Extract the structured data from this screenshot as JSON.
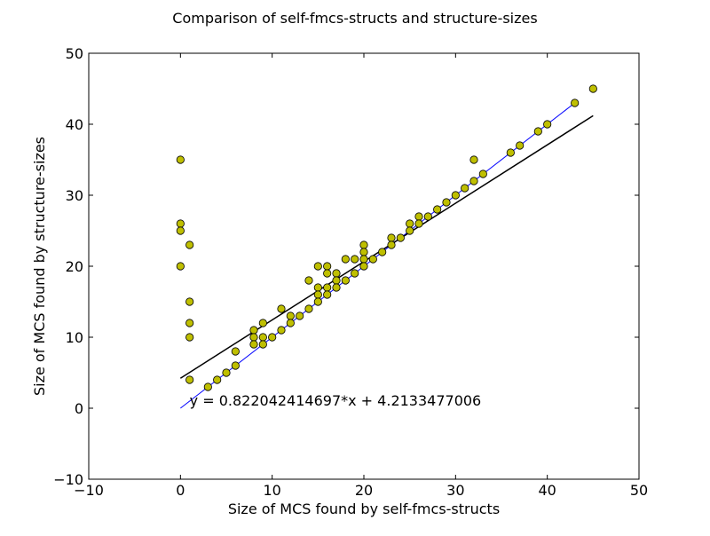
{
  "chart_data": {
    "type": "scatter",
    "title": "Comparison of self-fmcs-structs and structure-sizes",
    "xlabel": "Size of MCS found by self-fmcs-structs",
    "ylabel": "Size of MCS found by structure-sizes",
    "xlim": [
      -10,
      50
    ],
    "ylim": [
      -10,
      50
    ],
    "xticks": [
      "−10",
      "0",
      "10",
      "20",
      "30",
      "40",
      "50"
    ],
    "xtick_values": [
      -10,
      0,
      10,
      20,
      30,
      40,
      50
    ],
    "yticks": [
      "−10",
      "0",
      "10",
      "20",
      "30",
      "40",
      "50"
    ],
    "ytick_values": [
      -10,
      0,
      10,
      20,
      30,
      40,
      50
    ],
    "grid": false,
    "legend": "none",
    "marker_color": "#bfbf00",
    "marker_edge_color": "#000000",
    "fit_line_color": "#000000",
    "identity_line_color": "#0000ff",
    "annotation": "y = 0.822042414697*x + 4.2133477006",
    "fit": {
      "slope": 0.822042414697,
      "intercept": 4.2133477006,
      "x_range": [
        0,
        45
      ]
    },
    "identity": {
      "x_range": [
        0,
        43
      ]
    },
    "points": [
      {
        "x": 0,
        "y": 35
      },
      {
        "x": 0,
        "y": 26
      },
      {
        "x": 0,
        "y": 25
      },
      {
        "x": 0,
        "y": 20
      },
      {
        "x": 1,
        "y": 23
      },
      {
        "x": 1,
        "y": 15
      },
      {
        "x": 1,
        "y": 12
      },
      {
        "x": 1,
        "y": 10
      },
      {
        "x": 1,
        "y": 4
      },
      {
        "x": 3,
        "y": 3
      },
      {
        "x": 4,
        "y": 4
      },
      {
        "x": 5,
        "y": 5
      },
      {
        "x": 6,
        "y": 6
      },
      {
        "x": 6,
        "y": 8
      },
      {
        "x": 8,
        "y": 11
      },
      {
        "x": 8,
        "y": 10
      },
      {
        "x": 8,
        "y": 9
      },
      {
        "x": 9,
        "y": 12
      },
      {
        "x": 9,
        "y": 10
      },
      {
        "x": 9,
        "y": 9
      },
      {
        "x": 10,
        "y": 10
      },
      {
        "x": 11,
        "y": 14
      },
      {
        "x": 11,
        "y": 11
      },
      {
        "x": 12,
        "y": 13
      },
      {
        "x": 12,
        "y": 12
      },
      {
        "x": 13,
        "y": 13
      },
      {
        "x": 14,
        "y": 18
      },
      {
        "x": 14,
        "y": 14
      },
      {
        "x": 15,
        "y": 20
      },
      {
        "x": 15,
        "y": 17
      },
      {
        "x": 15,
        "y": 16
      },
      {
        "x": 15,
        "y": 15
      },
      {
        "x": 16,
        "y": 20
      },
      {
        "x": 16,
        "y": 19
      },
      {
        "x": 16,
        "y": 17
      },
      {
        "x": 16,
        "y": 16
      },
      {
        "x": 17,
        "y": 19
      },
      {
        "x": 17,
        "y": 18
      },
      {
        "x": 17,
        "y": 17
      },
      {
        "x": 18,
        "y": 21
      },
      {
        "x": 18,
        "y": 18
      },
      {
        "x": 19,
        "y": 21
      },
      {
        "x": 19,
        "y": 19
      },
      {
        "x": 20,
        "y": 23
      },
      {
        "x": 20,
        "y": 22
      },
      {
        "x": 20,
        "y": 21
      },
      {
        "x": 20,
        "y": 20
      },
      {
        "x": 21,
        "y": 21
      },
      {
        "x": 22,
        "y": 22
      },
      {
        "x": 23,
        "y": 24
      },
      {
        "x": 23,
        "y": 23
      },
      {
        "x": 24,
        "y": 24
      },
      {
        "x": 25,
        "y": 26
      },
      {
        "x": 25,
        "y": 25
      },
      {
        "x": 26,
        "y": 27
      },
      {
        "x": 26,
        "y": 26
      },
      {
        "x": 27,
        "y": 27
      },
      {
        "x": 28,
        "y": 28
      },
      {
        "x": 29,
        "y": 29
      },
      {
        "x": 30,
        "y": 30
      },
      {
        "x": 31,
        "y": 31
      },
      {
        "x": 32,
        "y": 35
      },
      {
        "x": 32,
        "y": 32
      },
      {
        "x": 33,
        "y": 33
      },
      {
        "x": 36,
        "y": 36
      },
      {
        "x": 37,
        "y": 37
      },
      {
        "x": 39,
        "y": 39
      },
      {
        "x": 40,
        "y": 40
      },
      {
        "x": 43,
        "y": 43
      },
      {
        "x": 45,
        "y": 45
      }
    ]
  }
}
